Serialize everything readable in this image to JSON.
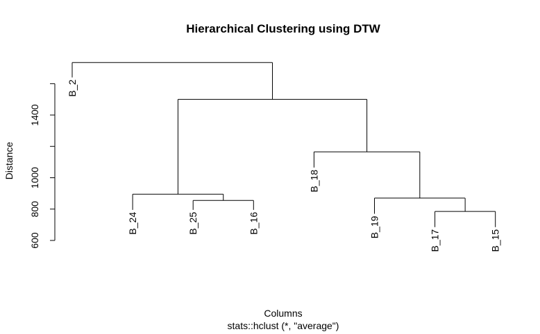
{
  "chart_data": {
    "type": "dendrogram",
    "title": "Hierarchical Clustering using DTW",
    "xlabel": "Columns",
    "sub": "stats::hclust (*, \"average\")",
    "ylabel": "Distance",
    "ylim": [
      600,
      1700
    ],
    "y_ticks": [
      600,
      800,
      1000,
      1200,
      1400,
      1600
    ],
    "y_tick_labels": [
      "600",
      "800",
      "1000",
      "",
      "1400",
      ""
    ],
    "leaf_order": [
      "B_2",
      "B_24",
      "B_25",
      "B_16",
      "B_18",
      "B_19",
      "B_17",
      "B_15"
    ],
    "merges": [
      {
        "id": "m1",
        "children": [
          "B_17",
          "B_15"
        ],
        "height": 785
      },
      {
        "id": "m2",
        "children": [
          "B_25",
          "B_16"
        ],
        "height": 855
      },
      {
        "id": "m3",
        "children": [
          "B_19",
          "m1"
        ],
        "height": 870
      },
      {
        "id": "m4",
        "children": [
          "B_24",
          "m2"
        ],
        "height": 895
      },
      {
        "id": "m5",
        "children": [
          "B_18",
          "m3"
        ],
        "height": 1165
      },
      {
        "id": "m6",
        "children": [
          "m4",
          "m5"
        ],
        "height": 1500
      },
      {
        "id": "m7",
        "children": [
          "B_2",
          "m6"
        ],
        "height": 1735
      }
    ],
    "leaf_label_top": {
      "B_2": 1640,
      "B_24": 795,
      "B_25": 795,
      "B_16": 795,
      "B_18": 1065,
      "B_19": 770,
      "B_17": 685,
      "B_15": 685
    }
  }
}
